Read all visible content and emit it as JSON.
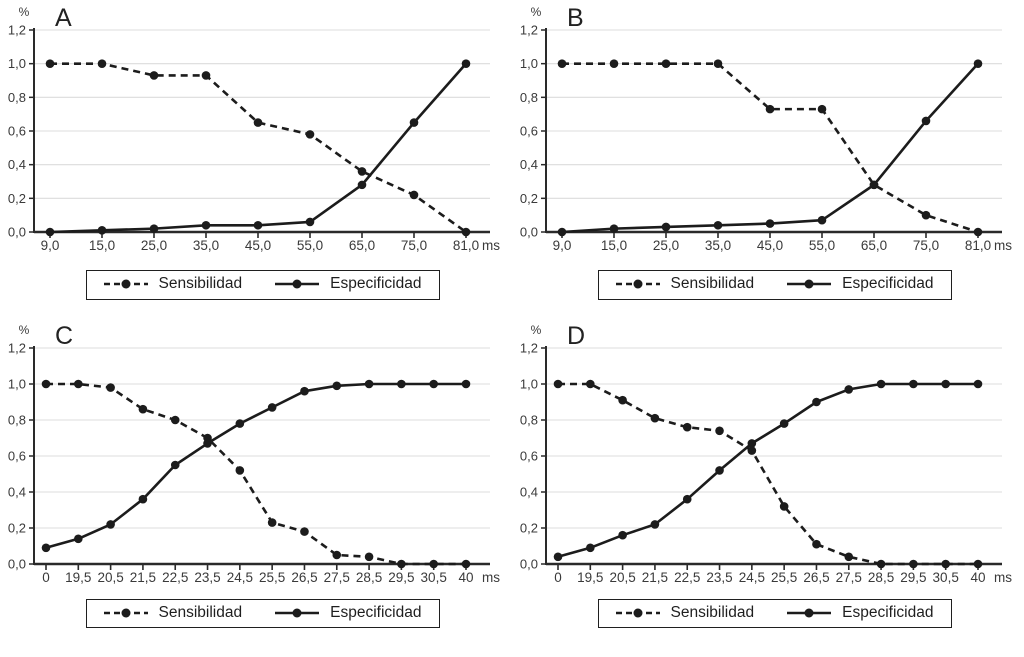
{
  "figure": {
    "background": "#ffffff",
    "line_color": "#1c1c1c",
    "grid_color": "#dcdcdc",
    "axis_color": "#2a2a2a",
    "tick_text_color": "#3a3a3a",
    "panel_letter_color": "#222222"
  },
  "legend": {
    "sensibilidad": "Sensibilidad",
    "especificidad": "Especificidad"
  },
  "chart_data": [
    {
      "type": "line",
      "panel_label": "A",
      "ylabel": "%",
      "x_unit": "ms",
      "ylim": [
        0,
        1.2
      ],
      "ytick_labels": [
        "0,0",
        "0,2",
        "0,4",
        "0,6",
        "0,8",
        "1,0",
        "1,2"
      ],
      "grid": true,
      "legend_position": "bottom",
      "categories": [
        "9,0",
        "15,0",
        "25,0",
        "35,0",
        "45,0",
        "55,0",
        "65,0",
        "75,0",
        "81,0"
      ],
      "series": [
        {
          "name": "Sensibilidad",
          "line_style": "dashed",
          "marker": "circle",
          "values": [
            1.0,
            1.0,
            0.93,
            0.93,
            0.65,
            0.58,
            0.36,
            0.22,
            0.0
          ]
        },
        {
          "name": "Especificidad",
          "line_style": "solid",
          "marker": "circle",
          "values": [
            0.0,
            0.01,
            0.02,
            0.04,
            0.04,
            0.06,
            0.28,
            0.65,
            1.0
          ]
        }
      ]
    },
    {
      "type": "line",
      "panel_label": "B",
      "ylabel": "%",
      "x_unit": "ms",
      "ylim": [
        0,
        1.2
      ],
      "ytick_labels": [
        "0,0",
        "0,2",
        "0,4",
        "0,6",
        "0,8",
        "1,0",
        "1,2"
      ],
      "grid": true,
      "legend_position": "bottom",
      "categories": [
        "9,0",
        "15,0",
        "25,0",
        "35,0",
        "45,0",
        "55,0",
        "65,0",
        "75,0",
        "81,0"
      ],
      "series": [
        {
          "name": "Sensibilidad",
          "line_style": "dashed",
          "marker": "circle",
          "values": [
            1.0,
            1.0,
            1.0,
            1.0,
            0.73,
            0.73,
            0.28,
            0.1,
            0.0
          ]
        },
        {
          "name": "Especificidad",
          "line_style": "solid",
          "marker": "circle",
          "values": [
            0.0,
            0.02,
            0.03,
            0.04,
            0.05,
            0.07,
            0.28,
            0.66,
            1.0
          ]
        }
      ]
    },
    {
      "type": "line",
      "panel_label": "C",
      "ylabel": "%",
      "x_unit": "ms",
      "ylim": [
        0,
        1.2
      ],
      "ytick_labels": [
        "0,0",
        "0,2",
        "0,4",
        "0,6",
        "0,8",
        "1,0",
        "1,2"
      ],
      "grid": true,
      "legend_position": "bottom",
      "categories": [
        "0",
        "19,5",
        "20,5",
        "21,5",
        "22,5",
        "23,5",
        "24,5",
        "25,5",
        "26,5",
        "27,5",
        "28,5",
        "29,5",
        "30,5",
        "40"
      ],
      "series": [
        {
          "name": "Sensibilidad",
          "line_style": "dashed",
          "marker": "circle",
          "values": [
            1.0,
            1.0,
            0.98,
            0.86,
            0.8,
            0.7,
            0.52,
            0.23,
            0.18,
            0.05,
            0.04,
            0.0,
            0.0,
            0.0
          ]
        },
        {
          "name": "Especificidad",
          "line_style": "solid",
          "marker": "circle",
          "values": [
            0.09,
            0.14,
            0.22,
            0.36,
            0.55,
            0.67,
            0.78,
            0.87,
            0.96,
            0.99,
            1.0,
            1.0,
            1.0,
            1.0
          ]
        }
      ]
    },
    {
      "type": "line",
      "panel_label": "D",
      "ylabel": "%",
      "x_unit": "ms",
      "ylim": [
        0,
        1.2
      ],
      "ytick_labels": [
        "0,0",
        "0,2",
        "0,4",
        "0,6",
        "0,8",
        "1,0",
        "1,2"
      ],
      "grid": true,
      "legend_position": "bottom",
      "categories": [
        "0",
        "19,5",
        "20,5",
        "21,5",
        "22,5",
        "23,5",
        "24,5",
        "25,5",
        "26,5",
        "27,5",
        "28,5",
        "29,5",
        "30,5",
        "40"
      ],
      "series": [
        {
          "name": "Sensibilidad",
          "line_style": "dashed",
          "marker": "circle",
          "values": [
            1.0,
            1.0,
            0.91,
            0.81,
            0.76,
            0.74,
            0.63,
            0.32,
            0.11,
            0.04,
            0.0,
            0.0,
            0.0,
            0.0
          ]
        },
        {
          "name": "Especificidad",
          "line_style": "solid",
          "marker": "circle",
          "values": [
            0.04,
            0.09,
            0.16,
            0.22,
            0.36,
            0.52,
            0.67,
            0.78,
            0.9,
            0.97,
            1.0,
            1.0,
            1.0,
            1.0
          ]
        }
      ]
    }
  ]
}
